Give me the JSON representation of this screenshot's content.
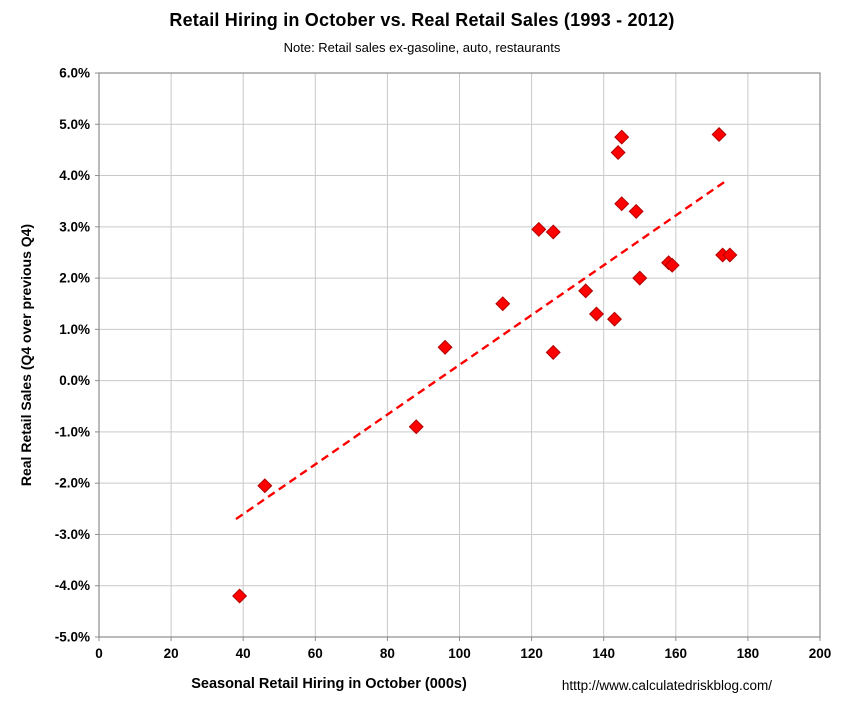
{
  "chart": {
    "title": "Retail Hiring in October vs. Real Retail Sales (1993 - 2012)",
    "subtitle": "Note: Retail sales ex-gasoline, auto, restaurants",
    "xlabel": "Seasonal Retail Hiring in October (000s)",
    "ylabel": "Real Retail Sales (Q4 over previous Q4)",
    "source_url": "htttp://www.calculatedriskblog.com/"
  },
  "colors": {
    "marker": "#FF0000",
    "marker_edge": "#B20000",
    "trend": "#FF0000",
    "grid": "#C9C9C9",
    "border": "#8C8C8C",
    "text": "#000000",
    "background": "#FFFFFF"
  },
  "chart_data": {
    "type": "scatter",
    "title": "Retail Hiring in October vs. Real Retail Sales (1993 - 2012)",
    "subtitle": "Note: Retail sales ex-gasoline, auto, restaurants",
    "xlabel": "Seasonal Retail Hiring in October (000s)",
    "ylabel": "Real Retail Sales (Q4 over previous Q4)",
    "xlim": [
      0,
      200
    ],
    "ylim": [
      -5,
      6
    ],
    "grid": true,
    "legend": false,
    "marker": {
      "shape": "diamond",
      "color": "#FF0000"
    },
    "x_ticks": [
      {
        "value": 0,
        "label": "0"
      },
      {
        "value": 20,
        "label": "20"
      },
      {
        "value": 40,
        "label": "40"
      },
      {
        "value": 60,
        "label": "60"
      },
      {
        "value": 80,
        "label": "80"
      },
      {
        "value": 100,
        "label": "100"
      },
      {
        "value": 120,
        "label": "120"
      },
      {
        "value": 140,
        "label": "140"
      },
      {
        "value": 160,
        "label": "160"
      },
      {
        "value": 180,
        "label": "180"
      },
      {
        "value": 200,
        "label": "200"
      }
    ],
    "y_ticks": [
      {
        "value": 6,
        "label": "6.0%"
      },
      {
        "value": 5,
        "label": "5.0%"
      },
      {
        "value": 4,
        "label": "4.0%"
      },
      {
        "value": 3,
        "label": "3.0%"
      },
      {
        "value": 2,
        "label": "2.0%"
      },
      {
        "value": 1,
        "label": "1.0%"
      },
      {
        "value": 0,
        "label": "0.0%"
      },
      {
        "value": -1,
        "label": "-1.0%"
      },
      {
        "value": -2,
        "label": "-2.0%"
      },
      {
        "value": -3,
        "label": "-3.0%"
      },
      {
        "value": -4,
        "label": "-4.0%"
      },
      {
        "value": -5,
        "label": "-5.0%"
      }
    ],
    "points": [
      [
        39,
        -4.2
      ],
      [
        46,
        -2.05
      ],
      [
        88,
        -0.9
      ],
      [
        96,
        0.65
      ],
      [
        112,
        1.5
      ],
      [
        122,
        2.95
      ],
      [
        126,
        2.9
      ],
      [
        126,
        0.55
      ],
      [
        135,
        1.75
      ],
      [
        138,
        1.3
      ],
      [
        143,
        1.2
      ],
      [
        144,
        4.45
      ],
      [
        145,
        4.75
      ],
      [
        145,
        3.45
      ],
      [
        149,
        3.3
      ],
      [
        150,
        2.0
      ],
      [
        158,
        2.3
      ],
      [
        159,
        2.25
      ],
      [
        172,
        4.8
      ],
      [
        173,
        2.45
      ],
      [
        175,
        2.45
      ]
    ],
    "trend_line": {
      "style": "dashed",
      "color": "#FF0000",
      "x1": 38,
      "y1": -2.7,
      "x2": 174,
      "y2": 3.9
    }
  }
}
